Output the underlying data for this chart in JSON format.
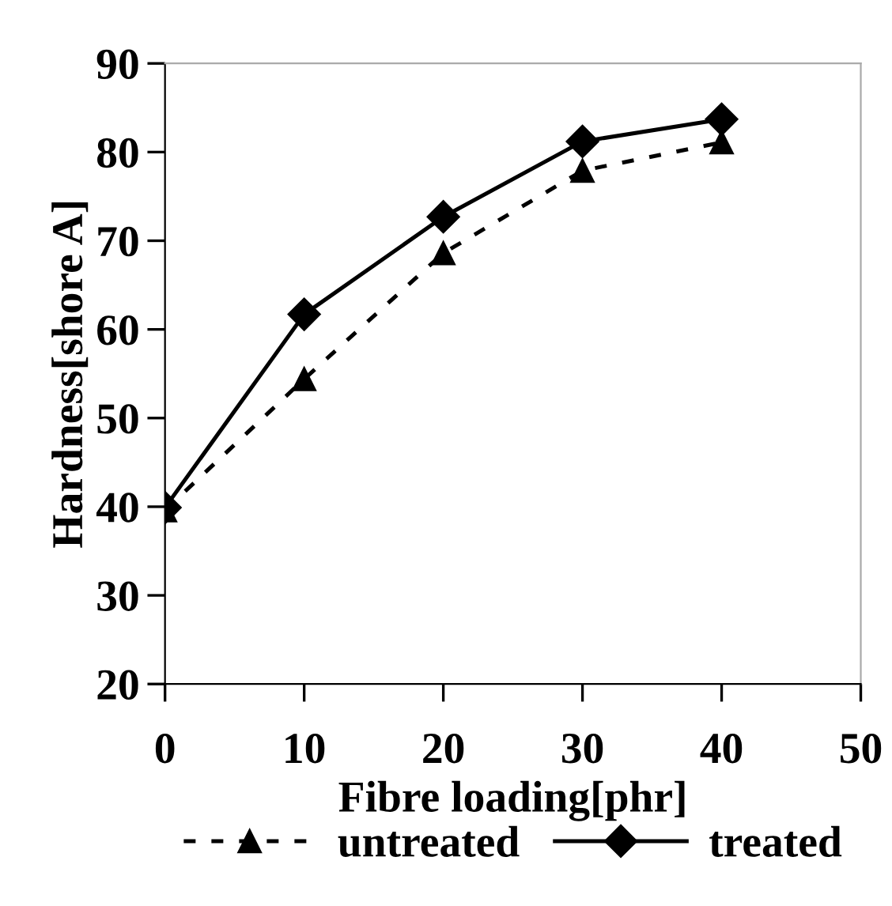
{
  "chart_data": {
    "type": "line",
    "xlabel": "Fibre loading[phr]",
    "ylabel": "Hardness[shore A]",
    "x": [
      0,
      10,
      20,
      30,
      40
    ],
    "series": [
      {
        "name": "untreated",
        "color": "#000000",
        "values": [
          39.6,
          54.4,
          68.6,
          77.9,
          81.1
        ],
        "marker": "triangle",
        "line_style": "dashed"
      },
      {
        "name": "treated",
        "color": "#000000",
        "values": [
          39.9,
          61.7,
          72.7,
          81.2,
          83.7
        ],
        "marker": "diamond",
        "line_style": "solid"
      }
    ],
    "xlim": [
      0,
      50
    ],
    "xticks": [
      0,
      10,
      20,
      30,
      40,
      50
    ],
    "ylim": [
      20,
      90
    ],
    "yticks": [
      20,
      30,
      40,
      50,
      60,
      70,
      80,
      90
    ],
    "grid": false,
    "legend": "bottom"
  }
}
